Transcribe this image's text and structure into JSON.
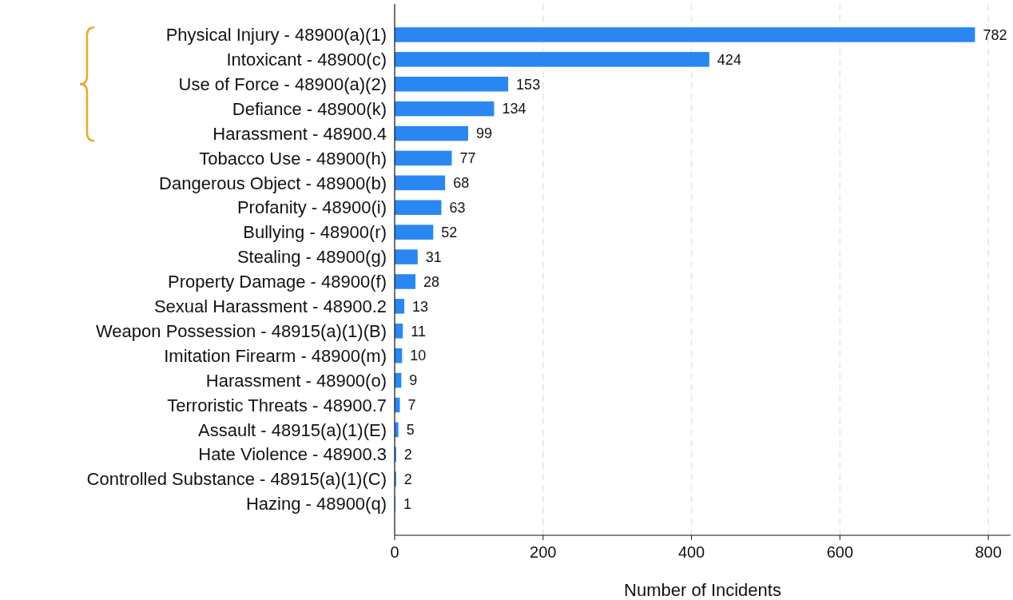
{
  "chart_data": {
    "type": "bar",
    "orientation": "horizontal",
    "xlabel": "Number of Incidents",
    "categories": [
      "Physical Injury - 48900(a)(1)",
      "Intoxicant - 48900(c)",
      "Use of Force - 48900(a)(2)",
      "Defiance - 48900(k)",
      "Harassment - 48900.4",
      "Tobacco Use - 48900(h)",
      "Dangerous Object - 48900(b)",
      "Profanity - 48900(i)",
      "Bullying - 48900(r)",
      "Stealing - 48900(g)",
      "Property Damage - 48900(f)",
      "Sexual Harassment - 48900.2",
      "Weapon Possession - 48915(a)(1)(B)",
      "Imitation Firearm - 48900(m)",
      "Harassment - 48900(o)",
      "Terroristic Threats - 48900.7",
      "Assault - 48915(a)(1)(E)",
      "Hate Violence - 48900.3",
      "Controlled Substance - 48915(a)(1)(C)",
      "Hazing - 48900(q)"
    ],
    "values": [
      782,
      424,
      153,
      134,
      99,
      77,
      68,
      63,
      52,
      31,
      28,
      13,
      11,
      10,
      9,
      7,
      5,
      2,
      2,
      1
    ],
    "color": "#2a87f2",
    "data_labels": true,
    "xlim": [
      0,
      830
    ],
    "xticks": [
      0,
      200,
      400,
      600,
      800
    ],
    "grid": "x"
  }
}
